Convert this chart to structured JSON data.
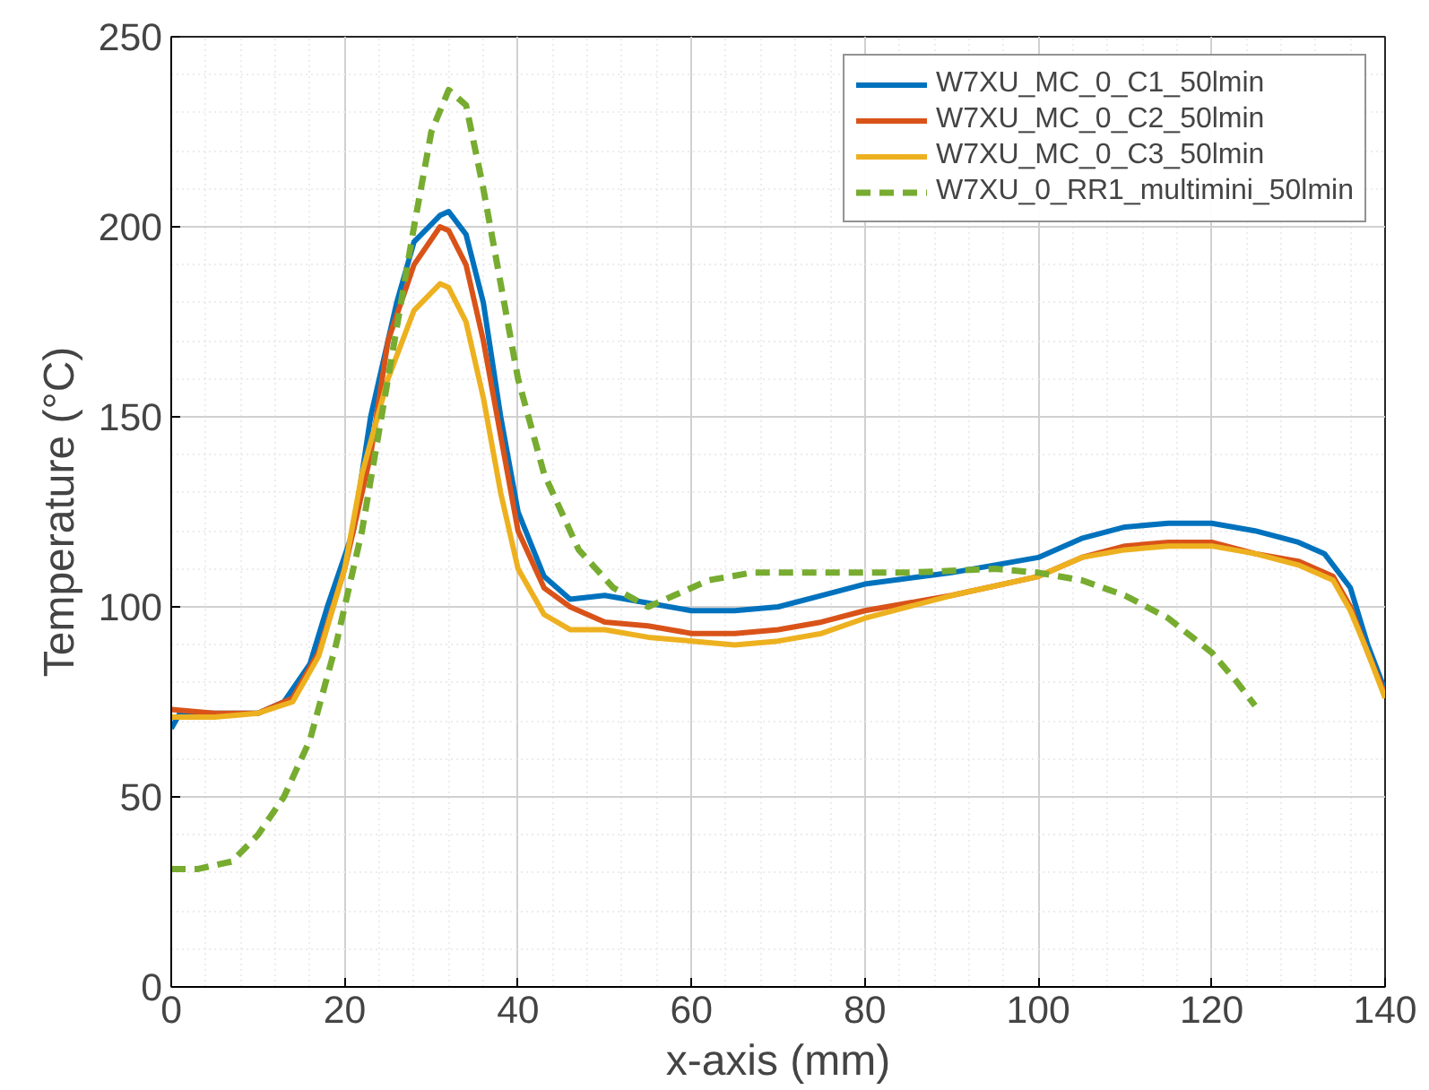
{
  "chart_data": {
    "type": "line",
    "xlabel": "x-axis (mm)",
    "ylabel": "Temperature (°C)",
    "xlim": [
      0,
      140
    ],
    "ylim": [
      0,
      250
    ],
    "xticks": [
      0,
      20,
      40,
      60,
      80,
      100,
      120,
      140
    ],
    "yticks": [
      0,
      50,
      100,
      150,
      200,
      250
    ],
    "grid": true,
    "legend": "top right",
    "marker": "none",
    "series": [
      {
        "name": "W7XU_MC_0_C1_50lmin",
        "color": "#0072bd",
        "line_style": "solid",
        "x": [
          0,
          1,
          2,
          5,
          10,
          13,
          16,
          18,
          21,
          23,
          26,
          28,
          31,
          32,
          34,
          36,
          38,
          40,
          43,
          46,
          50,
          55,
          60,
          65,
          70,
          75,
          80,
          90,
          100,
          105,
          110,
          115,
          120,
          125,
          130,
          133,
          136,
          138,
          140
        ],
        "values": [
          68,
          72,
          72,
          72,
          72,
          75,
          85,
          100,
          120,
          150,
          180,
          196,
          203,
          204,
          198,
          180,
          150,
          125,
          108,
          102,
          103,
          101,
          99,
          99,
          100,
          103,
          106,
          109,
          113,
          118,
          121,
          122,
          122,
          120,
          117,
          114,
          105,
          90,
          78
        ]
      },
      {
        "name": "W7XU_MC_0_C2_50lmin",
        "color": "#d95319",
        "line_style": "solid",
        "x": [
          0,
          5,
          10,
          14,
          17,
          20,
          23,
          25,
          28,
          31,
          32,
          34,
          36,
          38,
          40,
          43,
          46,
          50,
          55,
          60,
          65,
          70,
          75,
          80,
          90,
          100,
          105,
          110,
          115,
          120,
          125,
          130,
          134,
          136,
          138,
          140
        ],
        "values": [
          73,
          72,
          72,
          76,
          88,
          110,
          140,
          170,
          190,
          200,
          199,
          190,
          170,
          145,
          120,
          105,
          100,
          96,
          95,
          93,
          93,
          94,
          96,
          99,
          103,
          108,
          113,
          116,
          117,
          117,
          114,
          112,
          108,
          100,
          88,
          77
        ]
      },
      {
        "name": "W7XU_MC_0_C3_50lmin",
        "color": "#edb120",
        "line_style": "solid",
        "x": [
          0,
          5,
          10,
          14,
          17,
          20,
          22,
          25,
          28,
          31,
          32,
          34,
          36,
          38,
          40,
          43,
          46,
          50,
          55,
          60,
          65,
          70,
          75,
          80,
          90,
          100,
          105,
          110,
          115,
          120,
          125,
          130,
          134,
          136,
          138,
          140
        ],
        "values": [
          71,
          71,
          72,
          75,
          87,
          110,
          135,
          160,
          178,
          185,
          184,
          175,
          155,
          130,
          110,
          98,
          94,
          94,
          92,
          91,
          90,
          91,
          93,
          97,
          103,
          108,
          113,
          115,
          116,
          116,
          114,
          111,
          107,
          99,
          88,
          76
        ]
      },
      {
        "name": "W7XU_0_RR1_multimini_50lmin",
        "color": "#77ac30",
        "line_style": "dashed",
        "x": [
          0,
          3,
          7,
          10,
          13,
          16,
          19,
          22,
          25,
          28,
          30,
          32,
          34,
          36,
          38,
          40,
          43,
          47,
          51,
          55,
          58,
          62,
          67,
          75,
          85,
          95,
          100,
          105,
          110,
          115,
          120,
          123,
          125
        ],
        "values": [
          31,
          31,
          33,
          40,
          50,
          65,
          90,
          120,
          160,
          200,
          225,
          236,
          232,
          210,
          185,
          160,
          135,
          115,
          105,
          100,
          103,
          107,
          109,
          109,
          109,
          110,
          109,
          107,
          103,
          97,
          88,
          80,
          74
        ]
      }
    ]
  }
}
